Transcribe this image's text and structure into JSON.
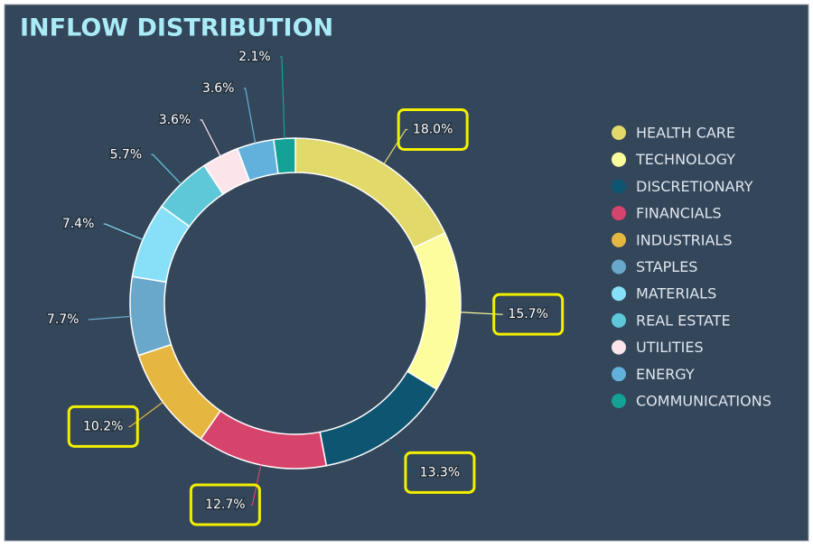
{
  "chart_data": {
    "type": "donut",
    "title": "INFLOW DISTRIBUTION",
    "categories": [
      "HEALTH CARE",
      "TECHNOLOGY",
      "DISCRETIONARY",
      "FINANCIALS",
      "INDUSTRIALS",
      "STAPLES",
      "MATERIALS",
      "REAL ESTATE",
      "UTILITIES",
      "ENERGY",
      "COMMUNICATIONS"
    ],
    "values": [
      18.0,
      15.7,
      13.3,
      12.7,
      10.2,
      7.7,
      7.4,
      5.7,
      3.6,
      3.6,
      2.1
    ],
    "value_labels": [
      "18.0%",
      "15.7%",
      "13.3%",
      "12.7%",
      "10.2%",
      "7.7%",
      "7.4%",
      "5.7%",
      "3.6%",
      "3.6%",
      "2.1%"
    ],
    "colors": [
      "#e2d96b",
      "#fdfd9d",
      "#0e5571",
      "#d6436b",
      "#e6b740",
      "#6aa8cb",
      "#87e0f7",
      "#5ec8d8",
      "#fbe5eb",
      "#62b1dc",
      "#14a296"
    ],
    "legend": "right"
  }
}
